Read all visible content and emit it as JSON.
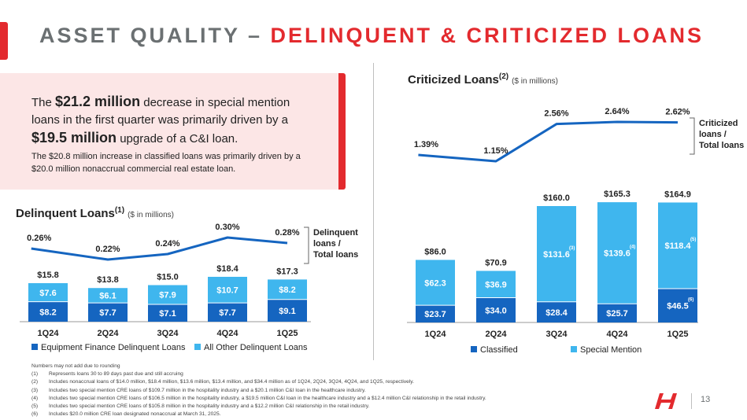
{
  "header": {
    "title_part1": "ASSET QUALITY – ",
    "title_part2": "DELINQUENT & CRITICIZED LOANS"
  },
  "colors": {
    "accent": "#e32a2e",
    "dark_blue": "#1565c0",
    "light_blue": "#3fb6ee",
    "title_gray": "#6b7072"
  },
  "callout": {
    "pre1": "The ",
    "bold1": "$21.2 million",
    "post1": " decrease in special mention loans in the first quarter was primarily driven by a ",
    "bold2": "$19.5 million",
    "post2": " upgrade of a C&I loan.",
    "sub": "The $20.8 million increase in classified loans was primarily driven by a $20.0 million nonaccrual commercial real estate loan."
  },
  "chart_data": [
    {
      "id": "delinquent",
      "type": "bar",
      "stacked": true,
      "title": "Delinquent Loans",
      "title_sup": "(1)",
      "unit_label": "($ in millions)",
      "categories": [
        "1Q24",
        "2Q24",
        "3Q24",
        "4Q24",
        "1Q25"
      ],
      "series": [
        {
          "name": "Equipment Finance Delinquent Loans",
          "values": [
            8.2,
            7.7,
            7.1,
            7.7,
            9.1
          ],
          "labels": [
            "$8.2",
            "$7.7",
            "$7.1",
            "$7.7",
            "$9.1"
          ],
          "color": "#1565c0"
        },
        {
          "name": "All Other Delinquent Loans",
          "values": [
            7.6,
            6.1,
            7.9,
            10.7,
            8.2
          ],
          "labels": [
            "$7.6",
            "$6.1",
            "$7.9",
            "$10.7",
            "$8.2"
          ],
          "color": "#3fb6ee"
        }
      ],
      "totals": [
        15.8,
        13.8,
        15.0,
        18.4,
        17.3
      ],
      "total_labels": [
        "$15.8",
        "$13.8",
        "$15.0",
        "$18.4",
        "$17.3"
      ],
      "ratio": {
        "name": "Delinquent loans / Total loans",
        "values": [
          0.26,
          0.22,
          0.24,
          0.3,
          0.28
        ],
        "labels": [
          "0.26%",
          "0.22%",
          "0.24%",
          "0.30%",
          "0.28%"
        ],
        "legend_lines": [
          "Delinquent",
          "loans /",
          "Total loans"
        ]
      },
      "legend": [
        "Equipment Finance Delinquent Loans",
        "All Other Delinquent Loans"
      ]
    },
    {
      "id": "criticized",
      "type": "bar",
      "stacked": true,
      "title": "Criticized Loans",
      "title_sup": "(2)",
      "unit_label": "($ in millions)",
      "categories": [
        "1Q24",
        "2Q24",
        "3Q24",
        "4Q24",
        "1Q25"
      ],
      "series": [
        {
          "name": "Classified",
          "values": [
            23.7,
            34.0,
            28.4,
            25.7,
            46.5
          ],
          "labels": [
            "$23.7",
            "$34.0",
            "$28.4",
            "$25.7",
            "$46.5"
          ],
          "notes": [
            "",
            "",
            "",
            "",
            "(6)"
          ],
          "color": "#1565c0"
        },
        {
          "name": "Special Mention",
          "values": [
            62.3,
            36.9,
            131.6,
            139.6,
            118.4
          ],
          "labels": [
            "$62.3",
            "$36.9",
            "$131.6",
            "$139.6",
            "$118.4"
          ],
          "notes": [
            "",
            "",
            "(3)",
            "(4)",
            "(5)"
          ],
          "color": "#3fb6ee"
        }
      ],
      "totals": [
        86.0,
        70.9,
        160.0,
        165.3,
        164.9
      ],
      "total_labels": [
        "$86.0",
        "$70.9",
        "$160.0",
        "$165.3",
        "$164.9"
      ],
      "ratio": {
        "name": "Criticized loans / Total loans",
        "values": [
          1.39,
          1.15,
          2.56,
          2.64,
          2.62
        ],
        "labels": [
          "1.39%",
          "1.15%",
          "2.56%",
          "2.64%",
          "2.62%"
        ],
        "legend_lines": [
          "Criticized",
          "loans /",
          "Total loans"
        ]
      },
      "legend": [
        "Classified",
        "Special Mention"
      ]
    }
  ],
  "footnotes": {
    "intro": "Numbers may not add due to rounding",
    "items": [
      {
        "num": "(1)",
        "text": "Represents loans 30 to 89 days past due and still accruing"
      },
      {
        "num": "(2)",
        "text": "Includes nonaccrual loans of $14.0 million, $18.4 million, $13.6 million, $13.4 million, and $34.4 million as of 1Q24, 2Q24, 3Q24, 4Q24, and 1Q25, respectively."
      },
      {
        "num": "(3)",
        "text": "Includes two special mention CRE loans of $109.7 million in the hospitality industry and a $20.1 million C&I loan in the healthcare industry."
      },
      {
        "num": "(4)",
        "text": "Includes two special mention CRE loans of $106.5 million in the hospitality industry, a $19.5 million C&I loan in the healthcare industry and a $12.4 million C&I relationship in the retail industry."
      },
      {
        "num": "(5)",
        "text": "Includes two special mention CRE loans of $105.8 million in the hospitality industry and a $12.2 million C&I relationship in the retail industry."
      },
      {
        "num": "(6)",
        "text": "Includes $20.0 million CRE loan designated nonaccrual at March 31, 2025."
      }
    ]
  },
  "page": {
    "number": "13"
  }
}
